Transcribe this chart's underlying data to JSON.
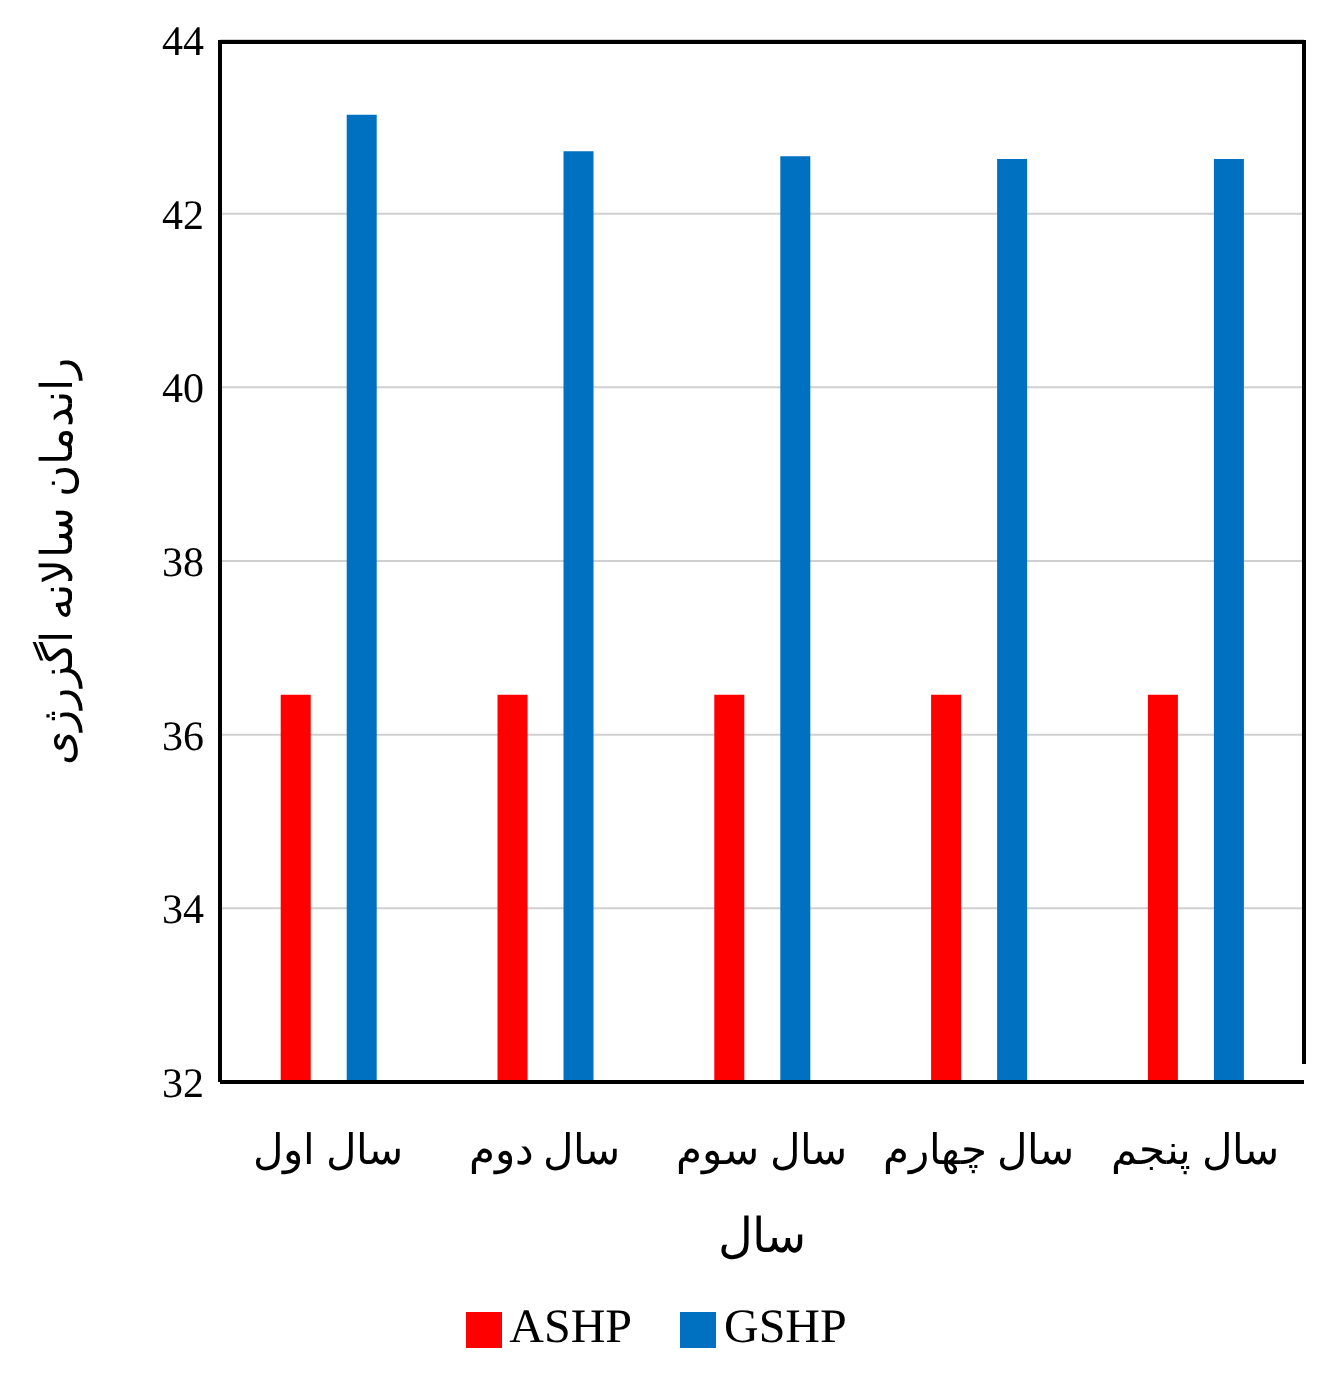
{
  "chart_data": {
    "type": "bar",
    "xlabel": "سال",
    "ylabel": "راندمان سالانه اگزرژی",
    "categories": [
      "سال اول",
      "سال دوم",
      "سال سوم",
      "سال چهارم",
      "سال پنجم"
    ],
    "series": [
      {
        "name": "ASHP",
        "color": "#ff0000",
        "values": [
          36.46,
          36.46,
          36.46,
          36.46,
          36.46
        ]
      },
      {
        "name": "GSHP",
        "color": "#0070c0",
        "values": [
          43.14,
          42.72,
          42.66,
          42.63,
          42.63
        ]
      }
    ],
    "ylim": [
      32,
      44
    ],
    "yticks": [
      32,
      34,
      36,
      38,
      40,
      42,
      44
    ],
    "grid": "y",
    "legend": "bottom"
  }
}
